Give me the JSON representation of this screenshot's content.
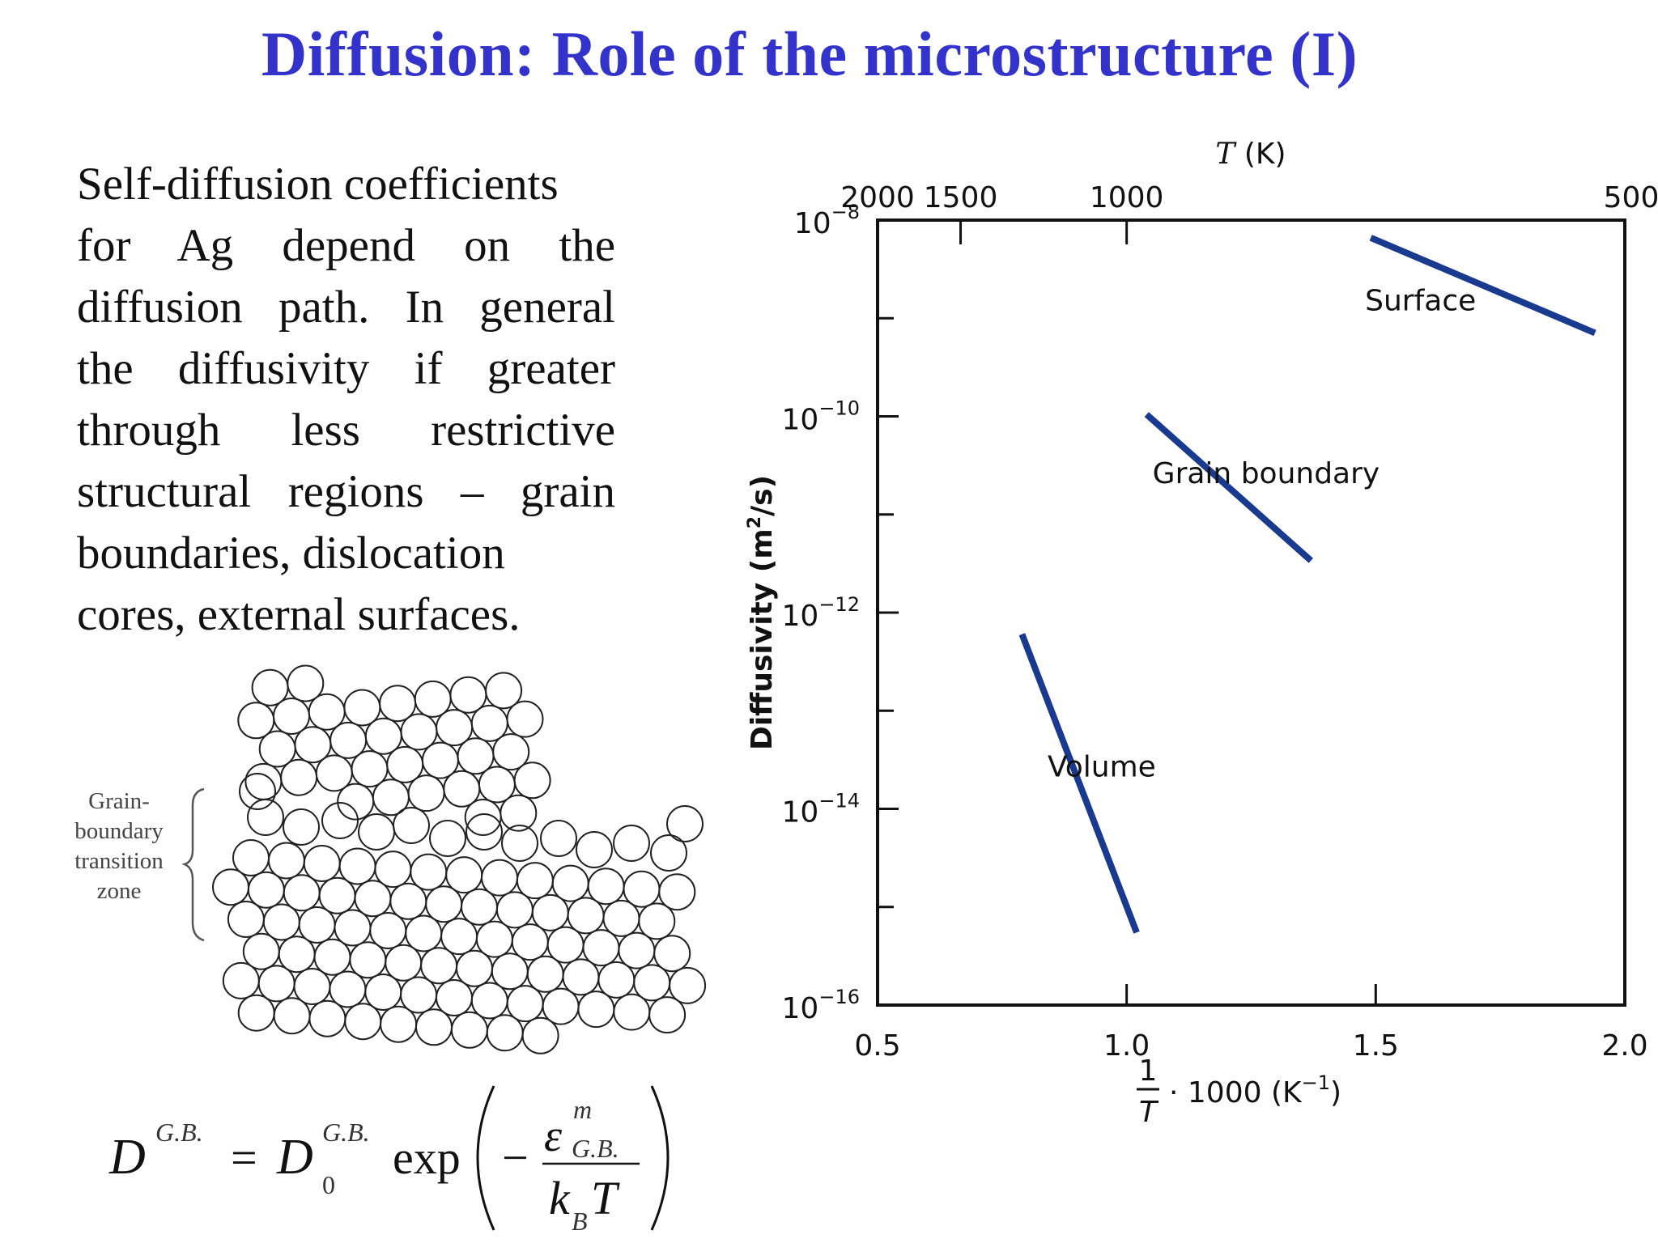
{
  "slide": {
    "title": "Diffusion: Role of the microstructure (I)",
    "body_lines": [
      "Self-diffusion coefficients",
      "for Ag depend on the",
      "diffusion path. In general",
      "the diffusivity if greater",
      "through less restrictive",
      "structural regions – grain",
      "boundaries, dislocation",
      "cores, external surfaces."
    ],
    "zone_label_lines": [
      "Grain-",
      "boundary",
      "transition",
      "zone"
    ],
    "formula": {
      "lhs": "D",
      "lhs_sup": "G.B.",
      "equals": "=",
      "d0": "D",
      "d0_sup": "G.B.",
      "d0_sub": "0",
      "exp": "exp",
      "minus": "−",
      "num": "ε",
      "num_sup": "m",
      "num_sub": "G.B.",
      "den_k": "k",
      "den_sub": "B",
      "den_t": "T"
    }
  },
  "chart_data": {
    "type": "line",
    "title": "",
    "xlabel_num": "1",
    "xlabel_den": "T",
    "xlabel_rest": "· 1000 (K",
    "xlabel_exp": "−1",
    "xlabel_close": ")",
    "ylabel": "Diffusivity (m",
    "ylabel_exp": "2",
    "ylabel_close": "/s)",
    "top_axis_label_T": "T",
    "top_axis_label_rest": " (K)",
    "xlim": [
      0.5,
      2.0
    ],
    "ylim_log10": [
      -16,
      -8
    ],
    "y_scale": "log",
    "x_ticks": [
      {
        "value": 0.5,
        "label": "0.5"
      },
      {
        "value": 1.0,
        "label": "1.0"
      },
      {
        "value": 1.5,
        "label": "1.5"
      },
      {
        "value": 2.0,
        "label": "2.0"
      }
    ],
    "y_ticks": [
      {
        "exp": -8,
        "base": "10",
        "sup": "−8"
      },
      {
        "exp": -10,
        "base": "10",
        "sup": "−10"
      },
      {
        "exp": -12,
        "base": "10",
        "sup": "−12"
      },
      {
        "exp": -14,
        "base": "10",
        "sup": "−14"
      },
      {
        "exp": -16,
        "base": "10",
        "sup": "−16"
      }
    ],
    "y_minor_exps": [
      -9,
      -11,
      -13,
      -15
    ],
    "top_ticks": [
      {
        "T": 2000,
        "label": "2000"
      },
      {
        "T": 1500,
        "label": "1500"
      },
      {
        "T": 1000,
        "label": "1000"
      },
      {
        "T": 500,
        "label": "500"
      }
    ],
    "series": [
      {
        "name": "Surface",
        "x": [
          1.49,
          1.94
        ],
        "log10_y": [
          -8.18,
          -9.15
        ]
      },
      {
        "name": "Grain boundary",
        "x": [
          1.04,
          1.37
        ],
        "log10_y": [
          -9.98,
          -11.47
        ]
      },
      {
        "name": "Volume",
        "x": [
          0.79,
          1.02
        ],
        "log10_y": [
          -12.22,
          -15.26
        ]
      }
    ],
    "series_color": "#1a3a8f",
    "grid": false,
    "legend": "none"
  }
}
